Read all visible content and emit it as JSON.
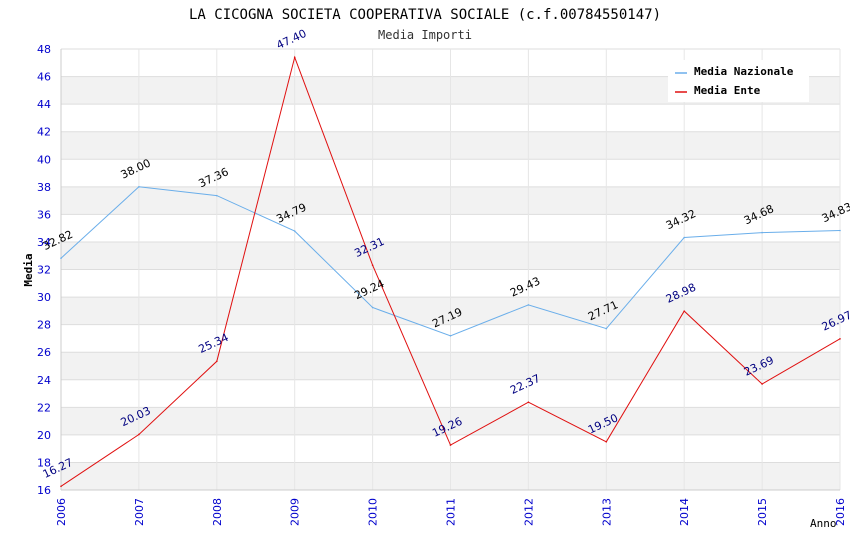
{
  "chart_data": {
    "type": "line",
    "title": "LA CICOGNA SOCIETA COOPERATIVA SOCIALE (c.f.00784550147)",
    "subtitle": "Media Importi",
    "xlabel": "Anno",
    "ylabel": "Media",
    "ylim": [
      16,
      48
    ],
    "ytick_step": 2,
    "categories": [
      "2006",
      "2007",
      "2008",
      "2009",
      "2010",
      "2011",
      "2012",
      "2013",
      "2014",
      "2015",
      "2016"
    ],
    "legend_position": "top-right",
    "series": [
      {
        "name": "Media Nazionale",
        "color": "#6aaeea",
        "label_color": "#000000",
        "values": [
          32.82,
          38.0,
          37.36,
          34.79,
          29.24,
          27.19,
          29.43,
          27.71,
          34.32,
          34.68,
          34.83
        ],
        "labels": [
          "32.82",
          "38.00",
          "37.36",
          "34.79",
          "29.24",
          "27.19",
          "29.43",
          "27.71",
          "34.32",
          "34.68",
          "34.83"
        ]
      },
      {
        "name": "Media Ente",
        "color": "#e01010",
        "label_color": "#000080",
        "values": [
          16.27,
          20.03,
          25.34,
          47.4,
          32.31,
          19.26,
          22.37,
          19.5,
          28.98,
          23.69,
          26.97
        ],
        "labels": [
          "16.27",
          "20.03",
          "25.34",
          "47.40",
          "32.31",
          "19.26",
          "22.37",
          "19.50",
          "28.98",
          "23.69",
          "26.97"
        ]
      }
    ]
  }
}
